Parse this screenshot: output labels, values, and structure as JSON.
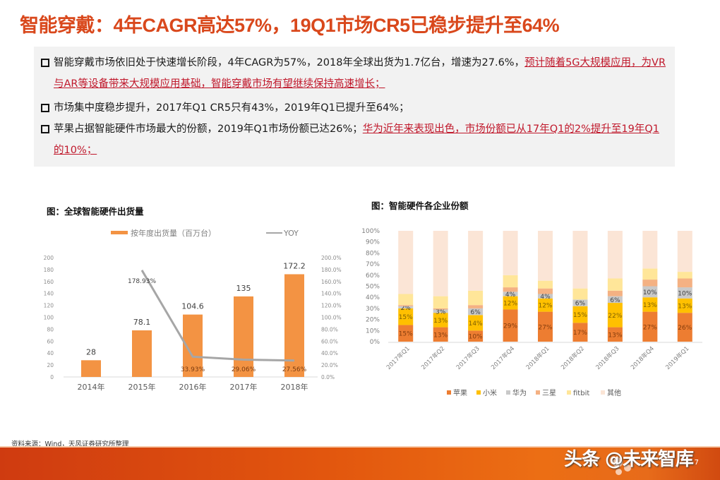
{
  "header": {
    "title": "智能穿戴：4年CAGR高达57%，19Q1市场CR5已稳步提升至64%"
  },
  "bullets": [
    {
      "text": "智能穿戴市场依旧处于快速增长阶段，4年CAGR为57%，2018年全球出货为1.7亿台，增速为27.6%，",
      "highlight": "预计随着5G大规模应用，为VR与AR等设备带来大规模应用基础，智能穿戴市场有望继续保持高速增长；"
    },
    {
      "text": "市场集中度稳步提升，2017年Q1 CR5只有43%，2019年Q1已提升至64%；",
      "highlight": ""
    },
    {
      "text": "苹果占据智能硬件市场最大的份额，2019年Q1市场份额已达26%；",
      "highlight": "华为近年来表现出色，市场份额已从17年Q1的2%提升至19年Q1的10%；"
    }
  ],
  "figures": {
    "left_title": "图：全球智能硬件出货量",
    "right_title": "图：智能硬件各企业份额"
  },
  "colors": {
    "title": "#d9481c",
    "highlight": "#c0182b",
    "bar_orange": "#f39343",
    "yoy_line": "#a6a6a6",
    "apple": "#ed7d31",
    "xiaomi": "#ffc000",
    "huawei": "#c9c9c9",
    "samsung": "#f4b183",
    "fitbit": "#ffe699",
    "others": "#fbe5d6"
  },
  "chart_data": [
    {
      "type": "bar",
      "title": "图：全球智能硬件出货量",
      "categories": [
        "2014年",
        "2015年",
        "2016年",
        "2017年",
        "2018年"
      ],
      "series": [
        {
          "name": "按年度出货量（百万台）",
          "type": "bar",
          "axis": "left",
          "values": [
            28,
            78.1,
            104.6,
            135,
            172.2
          ],
          "labels": [
            "28",
            "78.1",
            "104.6",
            "135",
            "172.2"
          ]
        },
        {
          "name": "YOY",
          "type": "line",
          "axis": "right",
          "values": [
            null,
            178.93,
            33.93,
            29.06,
            27.56
          ],
          "labels": [
            "",
            "178.93%",
            "33.93%",
            "29.06%",
            "27.56%"
          ]
        }
      ],
      "left_axis": {
        "ticks": [
          "0",
          "20",
          "40",
          "60",
          "80",
          "100",
          "120",
          "140",
          "160",
          "180",
          "200"
        ],
        "ylim": [
          0,
          200
        ]
      },
      "right_axis": {
        "ticks": [
          "0.0%",
          "20.0%",
          "40.0%",
          "60.0%",
          "80.0%",
          "100.0%",
          "120.0%",
          "140.0%",
          "160.0%",
          "180.0%",
          "200.0%"
        ],
        "ylim": [
          0,
          200
        ]
      },
      "legend_position": "top"
    },
    {
      "type": "bar",
      "stacked": true,
      "title": "图：智能硬件各企业份额",
      "categories": [
        "2017年Q1",
        "2017年Q2",
        "2017年Q3",
        "2017年Q4",
        "2018年Q1",
        "2018年Q2",
        "2018年Q3",
        "2018年Q4",
        "2019年Q1"
      ],
      "series": [
        {
          "name": "苹果",
          "values": [
            15,
            13,
            10,
            29,
            27,
            17,
            13,
            27,
            26
          ],
          "labels": [
            "15%",
            "13%",
            "10%",
            "29%",
            "27%",
            "17%",
            "13%",
            "27%",
            "26%"
          ]
        },
        {
          "name": "小米",
          "values": [
            15,
            13,
            14,
            12,
            12,
            15,
            22,
            13,
            13
          ],
          "labels": [
            "15%",
            "13%",
            "14%",
            "12%",
            "12%",
            "15%",
            "22%",
            "13%",
            "13%"
          ]
        },
        {
          "name": "华为",
          "values": [
            2,
            3,
            6,
            4,
            4,
            6,
            6,
            10,
            10
          ],
          "labels": [
            "2%",
            "3%",
            "6%",
            "4%",
            "4%",
            "6%",
            "6%",
            "10%",
            "10%"
          ]
        },
        {
          "name": "三星",
          "values": [
            1,
            1,
            3,
            4,
            5,
            0,
            5,
            6,
            8
          ],
          "labels": []
        },
        {
          "name": "fitbit",
          "values": [
            10,
            11,
            13,
            11,
            7,
            10,
            11,
            10,
            6
          ],
          "labels": []
        },
        {
          "name": "其他",
          "values": [
            57,
            59,
            54,
            40,
            45,
            52,
            43,
            34,
            37
          ],
          "labels": []
        }
      ],
      "y_axis": {
        "ticks": [
          "0%",
          "10%",
          "20%",
          "30%",
          "40%",
          "50%",
          "60%",
          "70%",
          "80%",
          "90%",
          "100%"
        ],
        "ylim": [
          0,
          100
        ]
      },
      "legend_position": "bottom"
    }
  ],
  "footer": {
    "source": "资料来源：Wind，天风证券研究所整理",
    "watermark": "头条 @未来智库",
    "page": "7"
  }
}
